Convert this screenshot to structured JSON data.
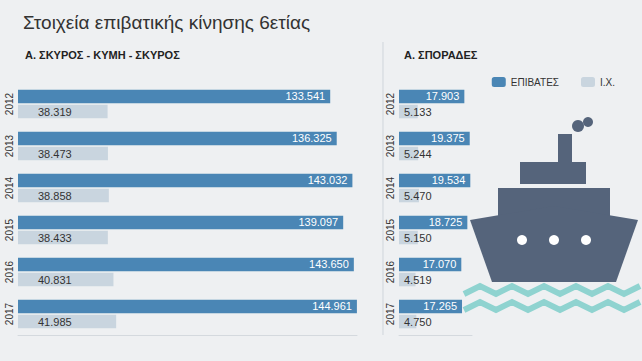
{
  "title": "Στοιχεία επιβατικής κίνησης 6ετίας",
  "chart_data": [
    {
      "type": "bar",
      "title": "Α. ΣΚΥΡΟΣ - ΚΥΜΗ - ΣΚΥΡΟΣ",
      "orientation": "horizontal",
      "categories": [
        "2012",
        "2013",
        "2014",
        "2015",
        "2016",
        "2017"
      ],
      "series": [
        {
          "name": "ΕΠΙΒΑΤΕΣ",
          "color": "#4a86b5",
          "values": [
            133541,
            136325,
            143032,
            139097,
            143650,
            144961
          ],
          "value_labels": [
            "133.541",
            "136.325",
            "143.032",
            "139.097",
            "143.650",
            "144.961"
          ]
        },
        {
          "name": "Ι.Χ.",
          "color": "#c9d5df",
          "values": [
            38319,
            38473,
            38858,
            38433,
            40831,
            41985
          ],
          "value_labels": [
            "38.319",
            "38.473",
            "38.858",
            "38.433",
            "40.831",
            "41.985"
          ]
        }
      ],
      "xlim": [
        0,
        145000
      ],
      "grid": false,
      "data_labels": true,
      "tick_labels": "y"
    },
    {
      "type": "bar",
      "title": "Α. ΣΠΟΡΑΔΕΣ",
      "orientation": "horizontal",
      "categories": [
        "2012",
        "2013",
        "2014",
        "2015",
        "2016",
        "2017"
      ],
      "series": [
        {
          "name": "ΕΠΙΒΑΤΕΣ",
          "color": "#4a86b5",
          "values": [
            17903,
            19375,
            19534,
            18725,
            17070,
            17265
          ],
          "value_labels": [
            "17.903",
            "19.375",
            "19.534",
            "18.725",
            "17.070",
            "17.265"
          ]
        },
        {
          "name": "Ι.Χ.",
          "color": "#c9d5df",
          "values": [
            5133,
            5244,
            5470,
            5150,
            4519,
            4750
          ],
          "value_labels": [
            "5.133",
            "5.244",
            "5.470",
            "5.150",
            "4.519",
            "4.750"
          ]
        }
      ],
      "xlim": [
        0,
        20000
      ],
      "grid": false,
      "data_labels": true,
      "tick_labels": "y",
      "legend": "upper right"
    }
  ]
}
